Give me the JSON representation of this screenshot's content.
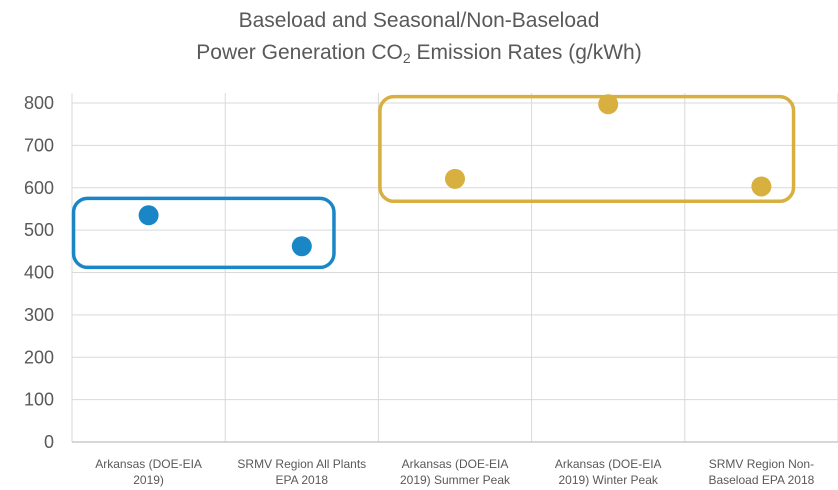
{
  "chart_data": {
    "type": "scatter",
    "title_line1": "Baseload and Seasonal/Non-Baseload",
    "title_line2_prefix": "Power Generation CO",
    "title_line2_subscript": "2",
    "title_line2_suffix": " Emission Rates (g/kWh)",
    "categories": [
      [
        "Arkansas (DOE-EIA",
        "2019)"
      ],
      [
        "SRMV Region All Plants",
        "EPA 2018"
      ],
      [
        "Arkansas (DOE-EIA",
        "2019) Summer Peak"
      ],
      [
        "Arkansas (DOE-EIA",
        "2019) Winter Peak"
      ],
      [
        "SRMV Region Non-",
        "Baseload EPA 2018"
      ]
    ],
    "yticks": [
      "0",
      "100",
      "200",
      "300",
      "400",
      "500",
      "600",
      "700",
      "800"
    ],
    "ylim": [
      0,
      800
    ],
    "grid": true,
    "points": [
      {
        "category": 0,
        "value": 535,
        "color": "#1b86c6"
      },
      {
        "category": 1,
        "value": 462,
        "color": "#1b86c6"
      },
      {
        "category": 2,
        "value": 621,
        "color": "#d7b040"
      },
      {
        "category": 3,
        "value": 797,
        "color": "#d7b040"
      },
      {
        "category": 4,
        "value": 603,
        "color": "#d7b040"
      }
    ],
    "groups": [
      {
        "name": "baseload",
        "categories": [
          0,
          1
        ],
        "ymin": 412,
        "ymax": 575,
        "color": "#1b86c6"
      },
      {
        "name": "seasonal-non-baseload",
        "categories": [
          2,
          4
        ],
        "ymin": 568,
        "ymax": 815,
        "color": "#d7b040"
      }
    ]
  }
}
